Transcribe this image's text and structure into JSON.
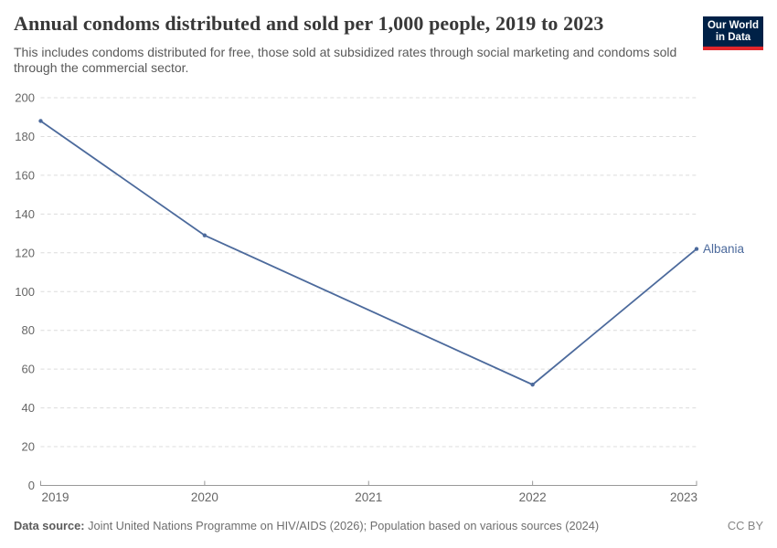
{
  "header": {
    "title": "Annual condoms distributed and sold per 1,000 people, 2019 to 2023",
    "subtitle": "This includes condoms distributed for free, those sold at subsidized rates through social marketing and condoms sold through the commercial sector.",
    "logo": {
      "line1": "Our World",
      "line2": "in Data",
      "bg_color": "#002147",
      "accent_color": "#E2262B"
    }
  },
  "chart_data": {
    "type": "line",
    "title": "Annual condoms distributed and sold per 1,000 people, 2019 to 2023",
    "x": [
      2019,
      2020,
      2021,
      2022,
      2023
    ],
    "x_tick_labels": [
      "2019",
      "2020",
      "2021",
      "2022",
      "2023"
    ],
    "series": [
      {
        "name": "Albania",
        "color": "#4C6A9C",
        "values": [
          188,
          129,
          null,
          52,
          122
        ]
      }
    ],
    "ylim": [
      0,
      200
    ],
    "ytick_step": 20,
    "ytick_labels": [
      "0",
      "20",
      "40",
      "60",
      "80",
      "100",
      "120",
      "140",
      "160",
      "180",
      "200"
    ],
    "grid": "horizontal-dashed",
    "legend_position": "line-end-label",
    "colors": {
      "gridline": "#dcdcdc",
      "axis": "#999999",
      "tick_label": "#666666"
    }
  },
  "footer": {
    "data_source_label": "Data source:",
    "data_source_text": "Joint United Nations Programme on HIV/AIDS (2026); Population based on various sources (2024)",
    "license": "CC BY"
  }
}
